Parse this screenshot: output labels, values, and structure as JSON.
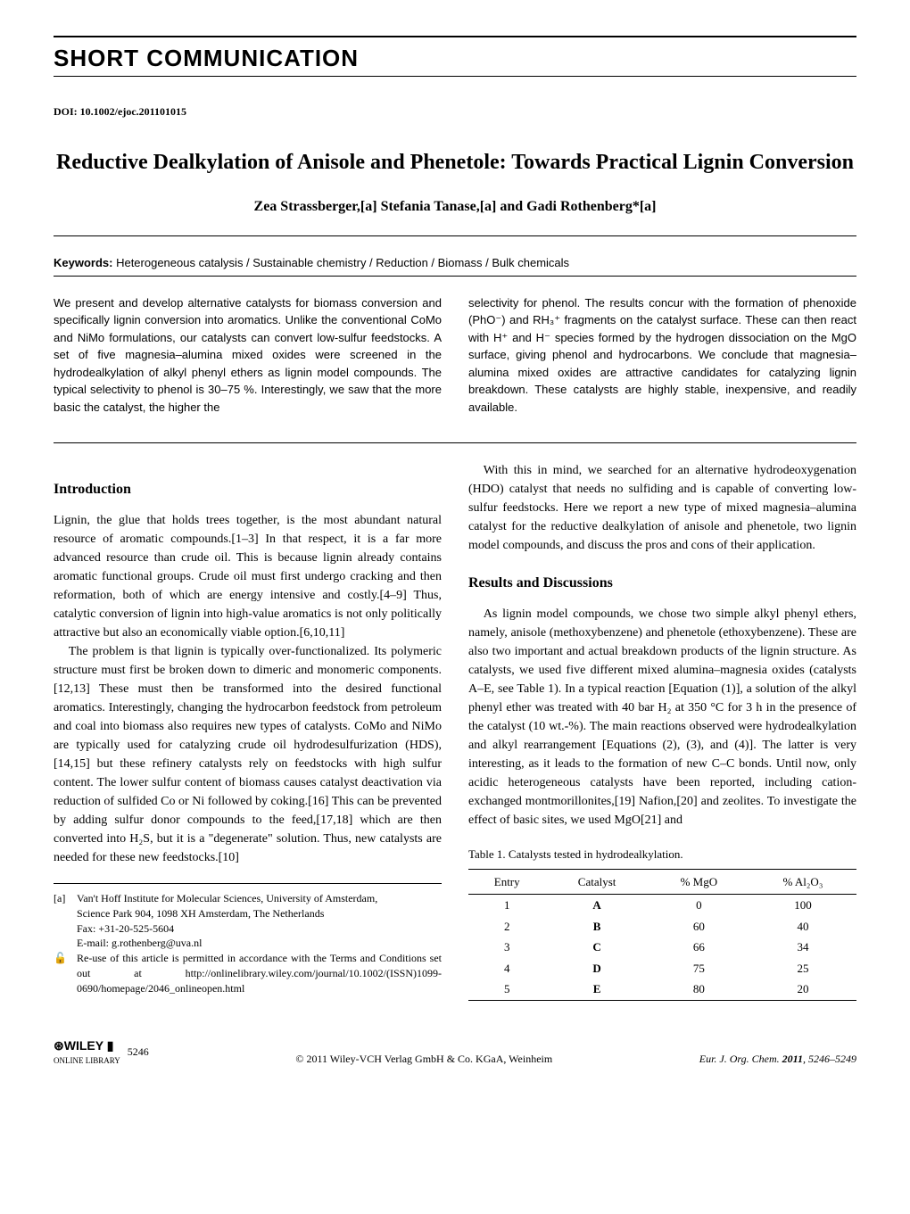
{
  "header": {
    "section_label": "SHORT COMMUNICATION",
    "doi_label": "DOI: 10.1002/ejoc.201101015"
  },
  "title": "Reductive Dealkylation of Anisole and Phenetole: Towards Practical Lignin Conversion",
  "authors": "Zea Strassberger,[a] Stefania Tanase,[a] and Gadi Rothenberg*[a]",
  "keywords": {
    "label": "Keywords:",
    "text": " Heterogeneous catalysis / Sustainable chemistry / Reduction / Biomass / Bulk chemicals"
  },
  "abstract": {
    "left": "We present and develop alternative catalysts for biomass conversion and specifically lignin conversion into aromatics. Unlike the conventional CoMo and NiMo formulations, our catalysts can convert low-sulfur feedstocks. A set of five magnesia–alumina mixed oxides were screened in the hydrodealkylation of alkyl phenyl ethers as lignin model compounds. The typical selectivity to phenol is 30–75 %. Interestingly, we saw that the more basic the catalyst, the higher the",
    "right": "selectivity for phenol. The results concur with the formation of phenoxide (PhO⁻) and RH₃⁺ fragments on the catalyst surface. These can then react with H⁺ and H⁻ species formed by the hydrogen dissociation on the MgO surface, giving phenol and hydrocarbons. We conclude that magnesia–alumina mixed oxides are attractive candidates for catalyzing lignin breakdown. These catalysts are highly stable, inexpensive, and readily available."
  },
  "sections": {
    "intro_heading": "Introduction",
    "intro_p1": "Lignin, the glue that holds trees together, is the most abundant natural resource of aromatic compounds.[1–3] In that respect, it is a far more advanced resource than crude oil. This is because lignin already contains aromatic functional groups. Crude oil must first undergo cracking and then reformation, both of which are energy intensive and costly.[4–9] Thus, catalytic conversion of lignin into high-value aromatics is not only politically attractive but also an economically viable option.[6,10,11]",
    "intro_p2": "The problem is that lignin is typically over-functionalized. Its polymeric structure must first be broken down to dimeric and monomeric components.[12,13] These must then be transformed into the desired functional aromatics. Interestingly, changing the hydrocarbon feedstock from petroleum and coal into biomass also requires new types of catalysts. CoMo and NiMo are typically used for catalyzing crude oil hydrodesulfurization (HDS),[14,15] but these refinery catalysts rely on feedstocks with high sulfur content. The lower sulfur content of biomass causes catalyst deactivation via reduction of sulfided Co or Ni followed by coking.[16] This can be prevented by adding sulfur donor compounds to the feed,[17,18] which are then converted into H₂S, but it is a \"degenerate\" solution. Thus, new catalysts are needed for these new feedstocks.[10]",
    "right_p1": "With this in mind, we searched for an alternative hydrodeoxygenation (HDO) catalyst that needs no sulfiding and is capable of converting low-sulfur feedstocks. Here we report a new type of mixed magnesia–alumina catalyst for the reductive dealkylation of anisole and phenetole, two lignin model compounds, and discuss the pros and cons of their application.",
    "results_heading": "Results and Discussions",
    "results_p1": "As lignin model compounds, we chose two simple alkyl phenyl ethers, namely, anisole (methoxybenzene) and phenetole (ethoxybenzene). These are also two important and actual breakdown products of the lignin structure. As catalysts, we used five different mixed alumina–magnesia oxides (catalysts A–E, see Table 1). In a typical reaction [Equation (1)], a solution of the alkyl phenyl ether was treated with 40 bar H₂ at 350 °C for 3 h in the presence of the catalyst (10 wt.-%). The main reactions observed were hydrodealkylation and alkyl rearrangement [Equations (2), (3), and (4)]. The latter is very interesting, as it leads to the formation of new C–C bonds. Until now, only acidic heterogeneous catalysts have been reported, including cation-exchanged montmorillonites,[19] Nafion,[20] and zeolites. To investigate the effect of basic sites, we used MgO[21] and"
  },
  "footnotes": {
    "a_tag": "[a]",
    "a_line1": "Van't Hoff Institute for Molecular Sciences, University of Amsterdam,",
    "a_line2": "Science Park 904, 1098 XH Amsterdam, The Netherlands",
    "a_line3": "Fax: +31-20-525-5604",
    "a_line4": "E-mail: g.rothenberg@uva.nl",
    "reuse_icon": "🔓",
    "reuse": "Re-use of this article is permitted in accordance with the Terms and Conditions set out at http://onlinelibrary.wiley.com/journal/10.1002/(ISSN)1099-0690/homepage/2046_onlineopen.html"
  },
  "table1": {
    "caption": "Table 1. Catalysts tested in hydrodealkylation.",
    "columns": [
      "Entry",
      "Catalyst",
      "% MgO",
      "% Al₂O₃"
    ],
    "rows": [
      [
        "1",
        "A",
        "0",
        "100"
      ],
      [
        "2",
        "B",
        "60",
        "40"
      ],
      [
        "3",
        "C",
        "66",
        "34"
      ],
      [
        "4",
        "D",
        "75",
        "25"
      ],
      [
        "5",
        "E",
        "80",
        "20"
      ]
    ]
  },
  "footer": {
    "wiley_logo": "⊛WILEY ▮",
    "wiley_sub": "ONLINE LIBRARY",
    "page_num": "5246",
    "copyright": "© 2011 Wiley-VCH Verlag GmbH & Co. KGaA, Weinheim",
    "journal": "Eur. J. Org. Chem. ",
    "journal_bold": "2011",
    "pages": ", 5246–5249"
  }
}
